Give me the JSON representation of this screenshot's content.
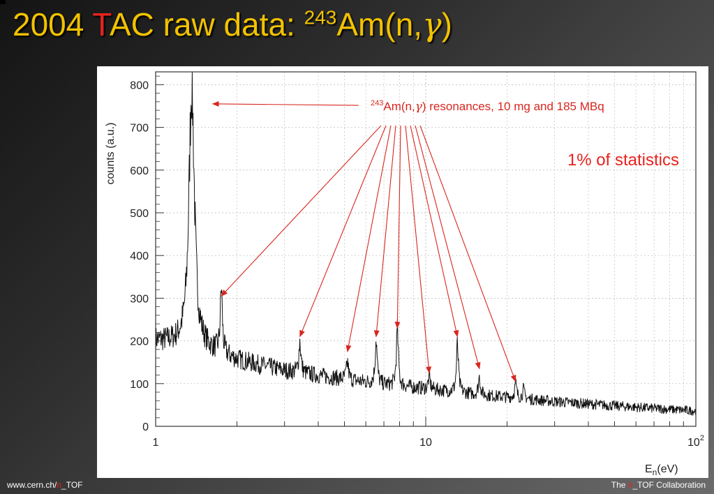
{
  "slide": {
    "title_prefix": "2004 ",
    "title_t": "T",
    "title_mid": "AC raw data: ",
    "title_sup": "243",
    "title_am": "Am(n,",
    "title_gamma": "γ",
    "title_close": ")"
  },
  "footer": {
    "left_pre": "www.cern.ch/",
    "left_n": "n",
    "left_post": "_TOF",
    "right_pre": "The ",
    "right_n": "n",
    "right_post": "_TOF Collaboration"
  },
  "colors": {
    "title": "#f2c200",
    "accent_red": "#e8231e",
    "annotation_red": "#d8261f",
    "data_line": "#111111",
    "grid": "#b5b5b5"
  },
  "chart_data": {
    "type": "line",
    "xlabel_main": "E",
    "xlabel_sub": "n",
    "xlabel_rest": "(eV)",
    "ylabel": "counts (a.u.)",
    "x_scale": "log",
    "xlim": [
      1,
      100
    ],
    "ylim": [
      0,
      830
    ],
    "x_ticks": [
      {
        "value": 1,
        "label": "1"
      },
      {
        "value": 10,
        "label": "10"
      },
      {
        "value": 100,
        "label": "10",
        "sup": "2"
      }
    ],
    "y_ticks": [
      0,
      100,
      200,
      300,
      400,
      500,
      600,
      700,
      800
    ],
    "grid": true,
    "baseline": {
      "x": [
        1.0,
        1.2,
        1.5,
        2.0,
        3.0,
        5.0,
        7.0,
        10.0,
        15.0,
        20.0,
        30.0,
        50.0,
        70.0,
        100.0
      ],
      "y": [
        200,
        192,
        180,
        155,
        130,
        110,
        97,
        88,
        75,
        68,
        58,
        48,
        42,
        36
      ]
    },
    "peaks": [
      {
        "x": 1.36,
        "y": 800
      },
      {
        "x": 1.75,
        "y": 320
      },
      {
        "x": 3.42,
        "y": 200
      },
      {
        "x": 5.13,
        "y": 150
      },
      {
        "x": 6.55,
        "y": 205
      },
      {
        "x": 7.85,
        "y": 225
      },
      {
        "x": 10.3,
        "y": 115
      },
      {
        "x": 13.1,
        "y": 190
      },
      {
        "x": 15.8,
        "y": 115
      },
      {
        "x": 21.5,
        "y": 100
      },
      {
        "x": 23.0,
        "y": 85
      }
    ],
    "annotation": {
      "sup": "243",
      "text_a": "Am(n,",
      "gamma": "γ",
      "text_b": ") resonances, 10 mg and 185 MBq",
      "arrow_targets": [
        {
          "x": 1.75,
          "y": 305
        },
        {
          "x": 3.42,
          "y": 210
        },
        {
          "x": 5.13,
          "y": 175
        },
        {
          "x": 6.55,
          "y": 210
        },
        {
          "x": 7.85,
          "y": 230
        },
        {
          "x": 10.3,
          "y": 125
        },
        {
          "x": 13.1,
          "y": 210
        },
        {
          "x": 15.8,
          "y": 135
        },
        {
          "x": 21.5,
          "y": 105
        }
      ]
    },
    "main_peak_arrow_target": {
      "x": 1.36,
      "y": 760
    },
    "statistics_note": "1% of statistics"
  }
}
